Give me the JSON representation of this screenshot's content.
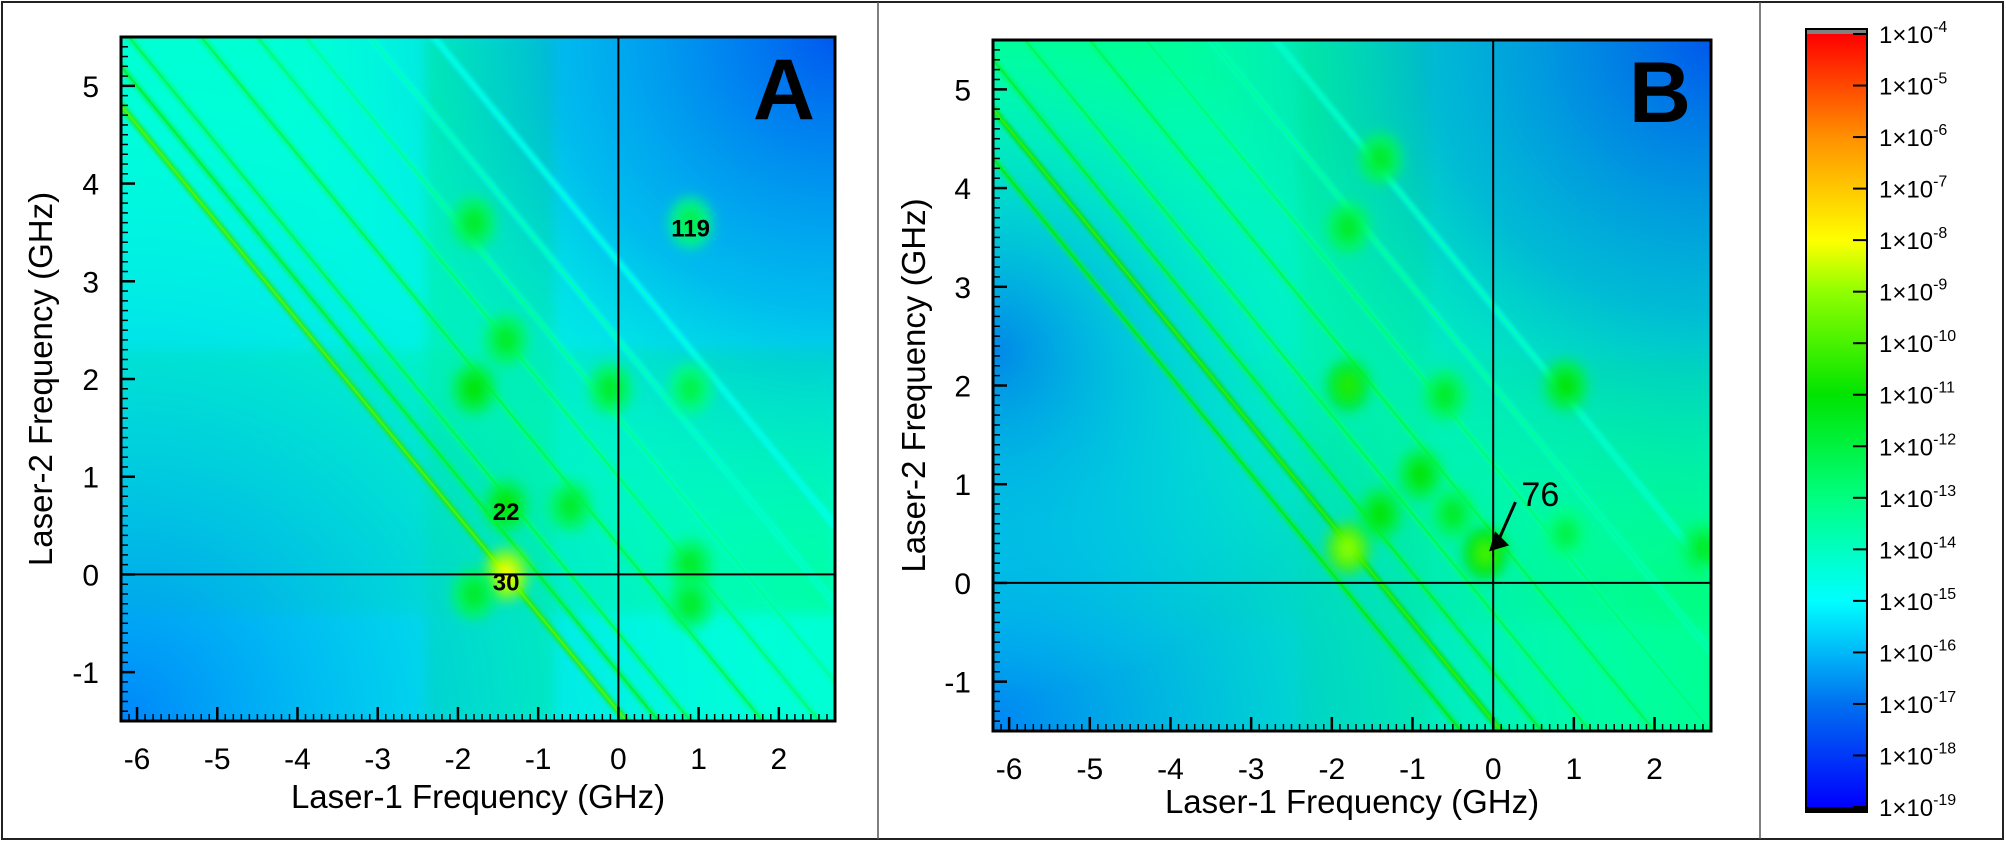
{
  "chart_data": [
    {
      "type": "heatmap",
      "panel_label": "A",
      "xlabel": "Laser-1 Frequency (GHz)",
      "ylabel": "Laser-2 Frequency (GHz)",
      "xlim": [
        -6.2,
        2.7
      ],
      "ylim": [
        -1.5,
        5.5
      ],
      "xticks": [
        "-6",
        "-5",
        "-4",
        "-3",
        "-2",
        "-1",
        "0",
        "1",
        "2"
      ],
      "yticks": [
        "-1",
        "0",
        "1",
        "2",
        "3",
        "4",
        "5"
      ],
      "reference_lines": {
        "x": 0,
        "y": 0
      },
      "background_log10": -14.3,
      "diagonals": [
        {
          "sum": -1.4,
          "log10": -10.5
        },
        {
          "sum": -1.0,
          "log10": -12.5
        },
        {
          "sum": -0.6,
          "log10": -13
        },
        {
          "sum": 0.3,
          "log10": -13
        },
        {
          "sum": 1.0,
          "log10": -13.5
        },
        {
          "sum": 1.6,
          "log10": -14
        },
        {
          "sum": 2.4,
          "log10": -14.5
        },
        {
          "sum": 3.2,
          "log10": -15
        }
      ],
      "hotspots": [
        {
          "x": -1.4,
          "y": 0.0,
          "log10": -8
        },
        {
          "x": -1.4,
          "y": 0.7,
          "log10": -11
        },
        {
          "x": -1.8,
          "y": 1.9,
          "log10": -11
        },
        {
          "x": -1.4,
          "y": 2.4,
          "log10": -11.5
        },
        {
          "x": -1.8,
          "y": 3.6,
          "log10": -11.5
        },
        {
          "x": -0.6,
          "y": 0.7,
          "log10": -11.5
        },
        {
          "x": -0.1,
          "y": 1.9,
          "log10": -11.5
        },
        {
          "x": 0.9,
          "y": 0.1,
          "log10": -11.5
        },
        {
          "x": 0.9,
          "y": -0.3,
          "log10": -11.5
        },
        {
          "x": 0.9,
          "y": 1.9,
          "log10": -12
        },
        {
          "x": 0.9,
          "y": 3.6,
          "log10": -12
        },
        {
          "x": -1.8,
          "y": -0.2,
          "log10": -11.5
        }
      ],
      "annotations": [
        {
          "text": "119",
          "x": 0.9,
          "y": 3.55
        },
        {
          "text": "22",
          "x": -1.4,
          "y": 0.65
        },
        {
          "text": "30",
          "x": -1.4,
          "y": -0.07
        }
      ]
    },
    {
      "type": "heatmap",
      "panel_label": "B",
      "xlabel": "Laser-1 Frequency (GHz)",
      "ylabel": "Laser-2 Frequency (GHz)",
      "xlim": [
        -6.2,
        2.7
      ],
      "ylim": [
        -1.5,
        5.5
      ],
      "xticks": [
        "-6",
        "-5",
        "-4",
        "-3",
        "-2",
        "-1",
        "0",
        "1",
        "2"
      ],
      "yticks": [
        "-1",
        "0",
        "1",
        "2",
        "3",
        "4",
        "5"
      ],
      "reference_lines": {
        "x": 0,
        "y": 0
      },
      "background_log10": -13.3,
      "diagonals": [
        {
          "sum": -1.4,
          "log10": -11
        },
        {
          "sum": -1.9,
          "log10": -12
        },
        {
          "sum": -0.9,
          "log10": -12.5
        },
        {
          "sum": -0.3,
          "log10": -13
        },
        {
          "sum": 0.5,
          "log10": -13
        },
        {
          "sum": 1.2,
          "log10": -13.5
        },
        {
          "sum": 2.0,
          "log10": -14
        },
        {
          "sum": 2.8,
          "log10": -14.5
        }
      ],
      "hotspots": [
        {
          "x": -1.8,
          "y": 0.35,
          "log10": -9
        },
        {
          "x": -1.4,
          "y": 0.7,
          "log10": -11
        },
        {
          "x": -1.8,
          "y": 2.0,
          "log10": -10.5
        },
        {
          "x": -1.4,
          "y": 4.3,
          "log10": -11.5
        },
        {
          "x": -1.8,
          "y": 3.6,
          "log10": -11.5
        },
        {
          "x": -0.9,
          "y": 1.1,
          "log10": -11
        },
        {
          "x": -0.5,
          "y": 0.7,
          "log10": -11.5
        },
        {
          "x": -0.1,
          "y": 0.3,
          "log10": -10
        },
        {
          "x": -0.6,
          "y": 1.9,
          "log10": -11.5
        },
        {
          "x": 0.9,
          "y": 2.0,
          "log10": -11
        },
        {
          "x": 0.9,
          "y": 0.5,
          "log10": -12
        },
        {
          "x": 2.6,
          "y": 0.35,
          "log10": -11.5
        }
      ],
      "annotations": [
        {
          "text": "76",
          "x": 0.35,
          "y": 0.9,
          "arrow_to": [
            -0.05,
            0.32
          ]
        }
      ]
    }
  ],
  "colorbar": {
    "ticks": [
      "1×10-4",
      "1×10-5",
      "1×10-6",
      "1×10-7",
      "1×10-8",
      "1×10-9",
      "1×10-10",
      "1×10-11",
      "1×10-12",
      "1×10-13",
      "1×10-14",
      "1×10-15",
      "1×10-16",
      "1×10-17",
      "1×10-18",
      "1×10-19"
    ],
    "tick_base": "1×10",
    "exponents": [
      "-4",
      "-5",
      "-6",
      "-7",
      "-8",
      "-9",
      "-10",
      "-11",
      "-12",
      "-13",
      "-14",
      "-15",
      "-16",
      "-17",
      "-18",
      "-19"
    ],
    "range_log10": [
      -19,
      -4
    ],
    "colors": {
      "-19": "#0000ff",
      "-17": "#0070f0",
      "-15": "#00ffff",
      "-13": "#00ff80",
      "-11": "#00e400",
      "-9": "#90ff00",
      "-8": "#ffff00",
      "-6": "#ff9000",
      "-4": "#ff0000"
    },
    "over_color": "#808080",
    "under_color": "#000000"
  }
}
